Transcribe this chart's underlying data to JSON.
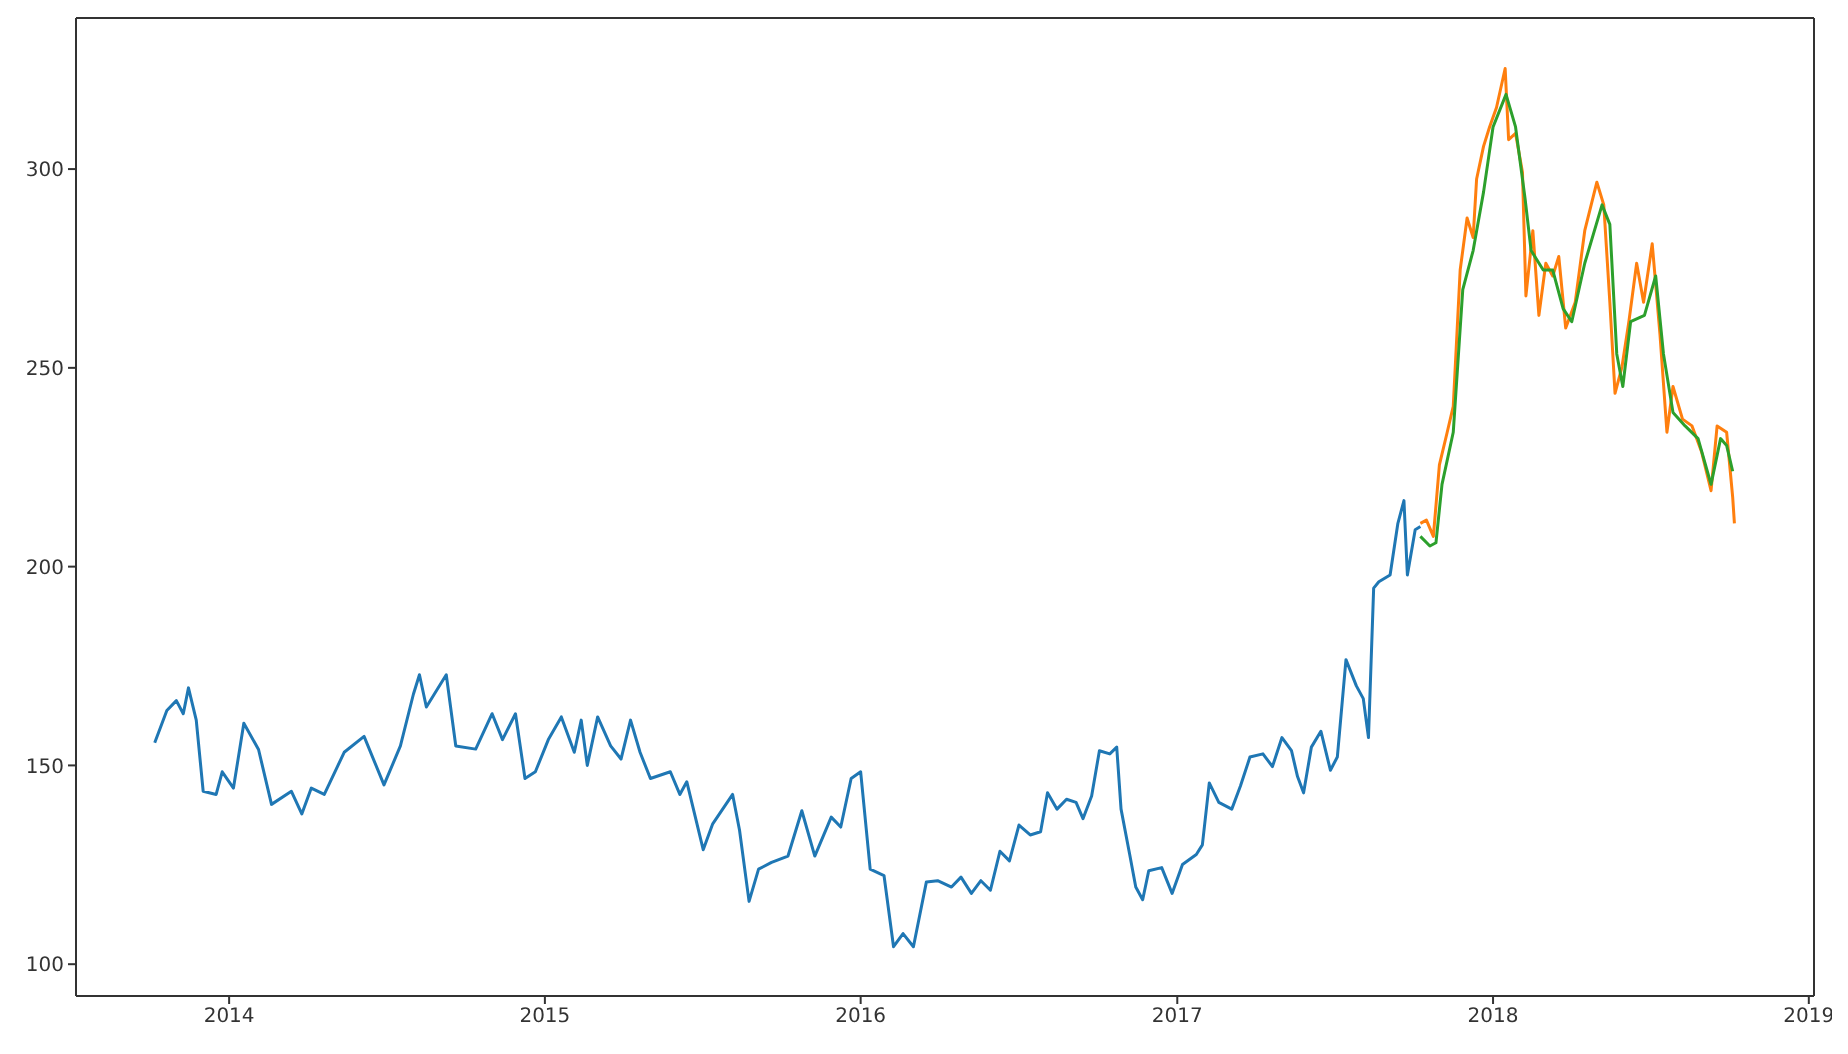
{
  "chart_data": {
    "type": "line",
    "xlim": [
      "2013-07-08",
      "2019-01-07"
    ],
    "ylim": [
      92,
      338
    ],
    "xticks": [
      "2014",
      "2015",
      "2016",
      "2017",
      "2018",
      "2019"
    ],
    "yticks": [
      100,
      150,
      200,
      250,
      300
    ],
    "series": [
      {
        "color": "#1f77b4",
        "x": [
          "2013-10-07",
          "2013-10-21",
          "2013-11-01",
          "2013-11-09",
          "2013-11-15",
          "2013-11-24",
          "2013-12-02",
          "2013-12-17",
          "2013-12-24",
          "2014-01-06",
          "2014-01-18",
          "2014-02-04",
          "2014-02-19",
          "2014-03-14",
          "2014-03-26",
          "2014-04-06",
          "2014-04-21",
          "2014-05-14",
          "2014-06-06",
          "2014-06-29",
          "2014-07-18",
          "2014-08-02",
          "2014-08-09",
          "2014-08-17",
          "2014-09-09",
          "2014-09-20",
          "2014-10-13",
          "2014-11-01",
          "2014-11-13",
          "2014-11-28",
          "2014-12-09",
          "2014-12-21",
          "2015-01-05",
          "2015-01-20",
          "2015-02-04",
          "2015-02-12",
          "2015-02-19",
          "2015-03-03",
          "2015-03-18",
          "2015-03-30",
          "2015-04-10",
          "2015-04-21",
          "2015-05-03",
          "2015-05-26",
          "2015-06-06",
          "2015-06-14",
          "2015-07-03",
          "2015-07-14",
          "2015-08-06",
          "2015-08-14",
          "2015-08-25",
          "2015-09-05",
          "2015-09-20",
          "2015-10-09",
          "2015-10-25",
          "2015-11-09",
          "2015-11-28",
          "2015-12-09",
          "2015-12-21",
          "2016-01-01",
          "2016-01-12",
          "2016-01-28",
          "2016-02-08",
          "2016-02-19",
          "2016-03-02",
          "2016-03-17",
          "2016-03-30",
          "2016-04-15",
          "2016-04-26",
          "2016-05-08",
          "2016-05-19",
          "2016-05-30",
          "2016-06-10",
          "2016-06-21",
          "2016-07-02",
          "2016-07-15",
          "2016-07-27",
          "2016-08-04",
          "2016-08-15",
          "2016-08-26",
          "2016-09-06",
          "2016-09-14",
          "2016-09-24",
          "2016-10-03",
          "2016-10-15",
          "2016-10-23",
          "2016-10-28",
          "2016-11-07",
          "2016-11-14",
          "2016-11-22",
          "2016-11-29",
          "2016-12-14",
          "2016-12-26",
          "2017-01-07",
          "2017-01-23",
          "2017-01-30",
          "2017-02-07",
          "2017-02-18",
          "2017-03-05",
          "2017-03-15",
          "2017-03-26",
          "2017-04-10",
          "2017-04-21",
          "2017-05-02",
          "2017-05-13",
          "2017-05-20",
          "2017-05-27",
          "2017-06-05",
          "2017-06-16",
          "2017-06-27",
          "2017-07-05",
          "2017-07-15",
          "2017-07-27",
          "2017-08-04",
          "2017-08-10",
          "2017-08-16",
          "2017-08-22",
          "2017-09-04",
          "2017-09-13",
          "2017-09-20",
          "2017-09-24",
          "2017-10-03",
          "2017-10-09"
        ],
        "values": [
          155.7,
          163.8,
          166.3,
          163,
          169.5,
          161.4,
          143.5,
          142.7,
          148.4,
          144.3,
          160.6,
          154,
          140.2,
          143.5,
          137.8,
          144.3,
          142.7,
          153.3,
          157.3,
          145.1,
          154.9,
          167.9,
          172.8,
          164.7,
          172.8,
          154.9,
          154.1,
          163,
          156.5,
          163,
          146.7,
          148.4,
          156.5,
          162.2,
          153.3,
          161.4,
          150,
          162.2,
          154.9,
          151.6,
          161.4,
          153.3,
          146.7,
          148.4,
          142.7,
          145.9,
          128.8,
          135.3,
          142.7,
          133.7,
          115.8,
          123.9,
          125.6,
          127.2,
          138.6,
          127.2,
          137,
          134.5,
          146.7,
          148.4,
          123.9,
          122.3,
          104.4,
          107.7,
          104.4,
          120.7,
          121,
          119.4,
          121.9,
          117.8,
          121,
          118.6,
          128.4,
          126,
          135,
          132.5,
          133.3,
          143.1,
          139,
          141.5,
          140.7,
          136.6,
          142.3,
          153.7,
          152.9,
          154.6,
          139,
          127.6,
          119.4,
          116.2,
          123.5,
          124.3,
          117.8,
          125.1,
          127.6,
          130,
          145.6,
          140.7,
          139,
          144.8,
          152.1,
          152.9,
          149.7,
          157,
          153.7,
          147.2,
          143.1,
          154.6,
          158.6,
          148.8,
          152.1,
          176.6,
          170,
          166.8,
          157,
          194.6,
          196.2,
          197.9,
          210.9,
          216.6,
          197.9,
          209.3,
          210.1
        ]
      },
      {
        "color": "#ff7f0e",
        "x": [
          "2017-10-09",
          "2017-10-16",
          "2017-10-24",
          "2017-10-31",
          "2017-11-09",
          "2017-11-16",
          "2017-11-24",
          "2017-12-02",
          "2017-12-09",
          "2017-12-13",
          "2017-12-21",
          "2017-12-28",
          "2018-01-05",
          "2018-01-15",
          "2018-01-19",
          "2018-01-27",
          "2018-02-04",
          "2018-02-08",
          "2018-02-16",
          "2018-02-23",
          "2018-03-03",
          "2018-03-11",
          "2018-03-18",
          "2018-03-26",
          "2018-04-06",
          "2018-04-17",
          "2018-05-01",
          "2018-05-09",
          "2018-05-16",
          "2018-05-22",
          "2018-05-30",
          "2018-06-07",
          "2018-06-16",
          "2018-06-24",
          "2018-07-04",
          "2018-07-13",
          "2018-07-21",
          "2018-07-28",
          "2018-08-08",
          "2018-08-19",
          "2018-08-30",
          "2018-09-10",
          "2018-09-17",
          "2018-09-28",
          "2018-10-05",
          "2018-10-07"
        ],
        "values": [
          210.9,
          211.7,
          207.6,
          225.6,
          233.8,
          240.3,
          274.6,
          287.7,
          282.8,
          297.5,
          305.7,
          310.6,
          315.5,
          325.3,
          307.4,
          309,
          299.2,
          268.1,
          284.5,
          263.2,
          276.3,
          273.1,
          278,
          260,
          266.5,
          284.5,
          296.7,
          291,
          266.5,
          243.6,
          250.2,
          261.6,
          276.3,
          266.5,
          281.2,
          258.3,
          233.8,
          245.3,
          237.1,
          235.4,
          228.9,
          219.1,
          235.4,
          233.8,
          217.5,
          210.9
        ]
      },
      {
        "color": "#2ca02c",
        "x": [
          "2017-10-09",
          "2017-10-20",
          "2017-10-27",
          "2017-11-03",
          "2017-11-16",
          "2017-11-27",
          "2017-12-09",
          "2017-12-21",
          "2018-01-01",
          "2018-01-16",
          "2018-01-27",
          "2018-02-07",
          "2018-02-14",
          "2018-02-28",
          "2018-03-11",
          "2018-03-23",
          "2018-04-02",
          "2018-04-17",
          "2018-05-07",
          "2018-05-16",
          "2018-05-24",
          "2018-05-31",
          "2018-06-09",
          "2018-06-25",
          "2018-07-08",
          "2018-07-17",
          "2018-07-28",
          "2018-08-11",
          "2018-08-26",
          "2018-09-10",
          "2018-09-21",
          "2018-09-28",
          "2018-10-05"
        ],
        "values": [
          207.6,
          205.2,
          206,
          220.7,
          233.8,
          269.7,
          279.5,
          294.2,
          310.6,
          318.8,
          310.6,
          292.6,
          279.5,
          274.6,
          274.6,
          264.9,
          261.6,
          276.3,
          291,
          286.1,
          253.5,
          245.3,
          261.6,
          263.2,
          273.1,
          253.5,
          238.8,
          235.4,
          232.2,
          220.7,
          232.2,
          230.5,
          224
        ]
      }
    ]
  }
}
